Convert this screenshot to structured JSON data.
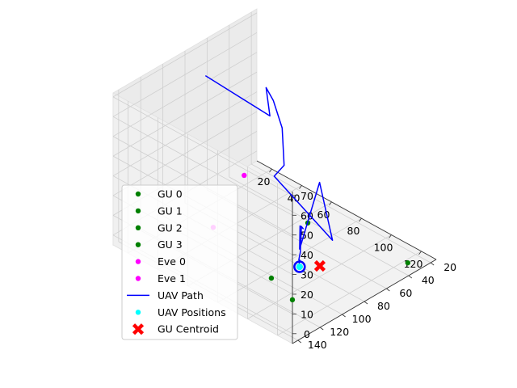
{
  "chart_data": {
    "type": "scatter",
    "projection": "3d",
    "grid": true,
    "legend_placement": "lower-left",
    "axes": {
      "x": {
        "ticks": [
          20,
          40,
          60,
          80,
          100,
          120
        ],
        "range": [
          10,
          130
        ]
      },
      "y": {
        "ticks": [
          20,
          40,
          60,
          80,
          100,
          120,
          140
        ],
        "range": [
          15,
          145
        ]
      },
      "z": {
        "ticks": [
          0,
          10,
          20,
          30,
          40,
          50,
          60,
          70
        ],
        "range": [
          -5,
          72
        ]
      }
    },
    "series": [
      {
        "name": "GU 0",
        "kind": "scatter",
        "color": "#008000",
        "points": [
          [
            110,
            118,
            0
          ]
        ]
      },
      {
        "name": "GU 1",
        "kind": "scatter",
        "color": "#008000",
        "points": [
          [
            128,
            38,
            0
          ]
        ]
      },
      {
        "name": "GU 2",
        "kind": "scatter",
        "color": "#008000",
        "points": [
          [
            70,
            50,
            0
          ]
        ]
      },
      {
        "name": "GU 3",
        "kind": "scatter",
        "color": "#008000",
        "points": [
          [
            90,
            110,
            0
          ]
        ]
      },
      {
        "name": "Eve 0",
        "kind": "scatter",
        "color": "#ff00ff",
        "points": [
          [
            20,
            40,
            0
          ]
        ]
      },
      {
        "name": "Eve 1",
        "kind": "scatter",
        "color": "#ff00ff",
        "points": [
          [
            40,
            95,
            0
          ]
        ]
      },
      {
        "name": "UAV Path",
        "kind": "line",
        "color": "#0000ff",
        "points": [
          [
            20,
            75,
            62
          ],
          [
            52,
            60,
            50
          ],
          [
            48,
            58,
            62
          ],
          [
            58,
            65,
            62
          ],
          [
            75,
            80,
            60
          ],
          [
            100,
            112,
            62
          ],
          [
            103,
            125,
            62
          ],
          [
            105,
            75,
            14
          ],
          [
            106,
            88,
            48
          ],
          [
            100,
            98,
            15
          ],
          [
            104,
            103,
            30
          ],
          [
            95,
            88,
            20
          ],
          [
            99,
            95,
            25
          ],
          [
            102,
            100,
            15
          ],
          [
            98,
            96,
            8
          ],
          [
            101,
            99,
            10
          ],
          [
            99,
            97,
            7
          ],
          [
            100,
            98,
            6
          ],
          [
            101,
            99,
            7
          ],
          [
            100,
            98,
            6
          ]
        ]
      },
      {
        "name": "UAV Positions",
        "kind": "scatter",
        "color": "#00ffff",
        "points": [
          [
            100,
            98,
            6
          ]
        ]
      },
      {
        "name": "GU Centroid",
        "kind": "marker-x",
        "color": "#ff0000",
        "points": [
          [
            99.5,
            79,
            0
          ]
        ]
      }
    ],
    "legend": [
      "GU 0",
      "GU 1",
      "GU 2",
      "GU 3",
      "Eve 0",
      "Eve 1",
      "UAV Path",
      "UAV Positions",
      "GU Centroid"
    ]
  }
}
